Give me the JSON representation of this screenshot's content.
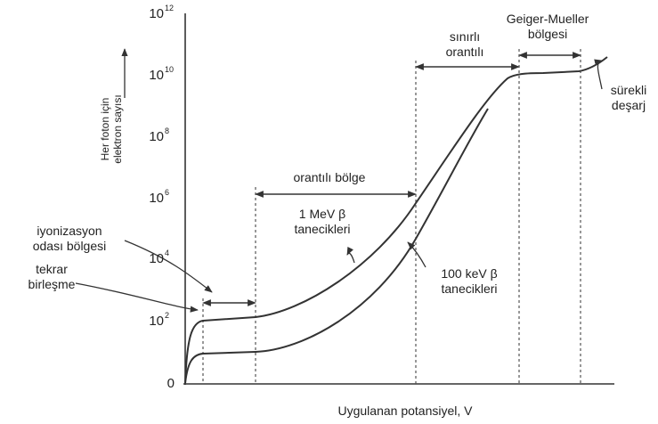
{
  "y_axis": {
    "label_lines": [
      "Her foton için",
      "elektron sayısı"
    ],
    "ticks": [
      {
        "base": "0"
      },
      {
        "base": "10",
        "exp": "2"
      },
      {
        "base": "10",
        "exp": "4"
      },
      {
        "base": "10",
        "exp": "6"
      },
      {
        "base": "10",
        "exp": "8"
      },
      {
        "base": "10",
        "exp": "10"
      },
      {
        "base": "10",
        "exp": "12"
      }
    ]
  },
  "x_axis": {
    "label": "Uygulanan potansiyel, V"
  },
  "regions": {
    "geiger": [
      "Geiger-Mueller",
      "bölgesi"
    ],
    "limited": [
      "sınırlı",
      "orantılı"
    ],
    "discharge": [
      "sürekli",
      "deşarj"
    ],
    "proportional": "orantılı bölge",
    "ionization": [
      "iyonizasyon",
      "odası bölgesi"
    ],
    "recombination": [
      "tekrar",
      "birleşme"
    ]
  },
  "curves": {
    "high": [
      "1 MeV β",
      "tanecikleri"
    ],
    "low": [
      "100 keV β",
      "tanecikleri"
    ]
  }
}
